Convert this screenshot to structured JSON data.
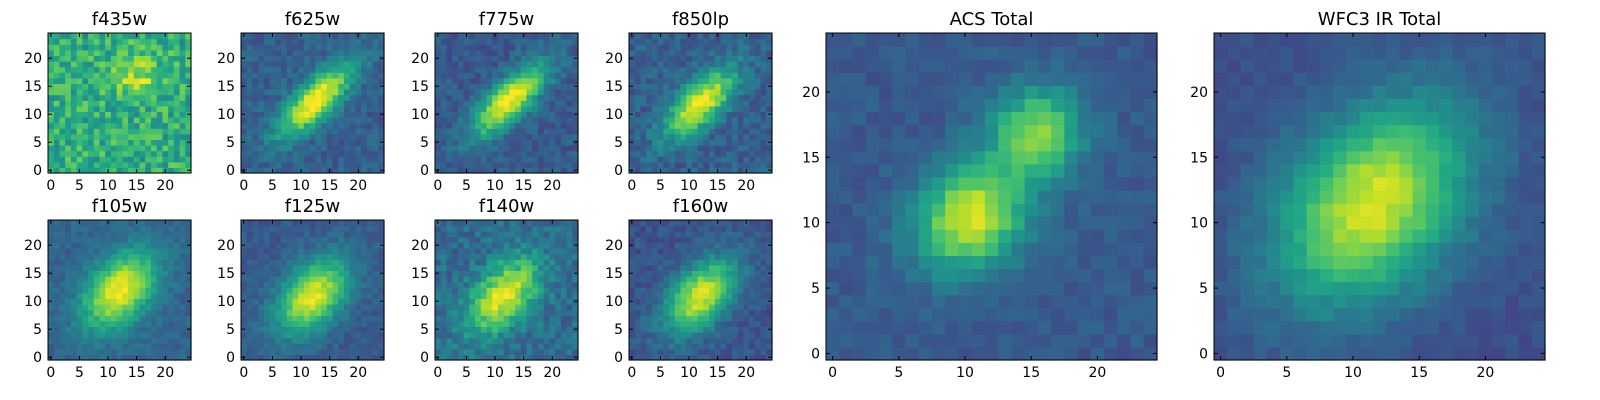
{
  "chart_data": [
    {
      "type": "heatmap",
      "title": "f435w",
      "grid": false,
      "colormap": "viridis",
      "xlim": [
        0,
        25
      ],
      "ylim": [
        0,
        25
      ],
      "xticks": [
        0,
        5,
        10,
        15,
        20
      ],
      "yticks": [
        0,
        5,
        10,
        15,
        20
      ],
      "z_description_note": null,
      "model": {
        "cx": 15,
        "cy": 17,
        "angle_deg": 0,
        "sigma_major": 3,
        "sigma_minor": 3,
        "peak": 0.25,
        "background": 0.62,
        "noise": 0.16,
        "second": null
      }
    },
    {
      "type": "heatmap",
      "title": "f625w",
      "grid": false,
      "colormap": "viridis",
      "xlim": [
        0,
        25
      ],
      "ylim": [
        0,
        25
      ],
      "xticks": [
        0,
        5,
        10,
        15,
        20
      ],
      "yticks": [
        0,
        5,
        10,
        15,
        20
      ],
      "model": {
        "cx": 12.5,
        "cy": 12.5,
        "angle_deg": 45,
        "sigma_major": 6,
        "sigma_minor": 2.2,
        "peak": 0.72,
        "background": 0.3,
        "noise": 0.08,
        "second": null
      }
    },
    {
      "type": "heatmap",
      "title": "f775w",
      "grid": false,
      "colormap": "viridis",
      "xlim": [
        0,
        25
      ],
      "ylim": [
        0,
        25
      ],
      "xticks": [
        0,
        5,
        10,
        15,
        20
      ],
      "yticks": [
        0,
        5,
        10,
        15,
        20
      ],
      "model": {
        "cx": 12.5,
        "cy": 12.5,
        "angle_deg": 45,
        "sigma_major": 6,
        "sigma_minor": 2.2,
        "peak": 0.72,
        "background": 0.28,
        "noise": 0.08,
        "second": null
      }
    },
    {
      "type": "heatmap",
      "title": "f850lp",
      "grid": false,
      "colormap": "viridis",
      "xlim": [
        0,
        25
      ],
      "ylim": [
        0,
        25
      ],
      "xticks": [
        0,
        5,
        10,
        15,
        20
      ],
      "yticks": [
        0,
        5,
        10,
        15,
        20
      ],
      "model": {
        "cx": 12,
        "cy": 12,
        "angle_deg": 45,
        "sigma_major": 5.5,
        "sigma_minor": 2.4,
        "peak": 0.7,
        "background": 0.3,
        "noise": 0.09,
        "second": null
      }
    },
    {
      "type": "heatmap",
      "title": "f105w",
      "grid": false,
      "colormap": "viridis",
      "xlim": [
        0,
        25
      ],
      "ylim": [
        0,
        25
      ],
      "xticks": [
        0,
        5,
        10,
        15,
        20
      ],
      "yticks": [
        0,
        5,
        10,
        15,
        20
      ],
      "model": {
        "cx": 12,
        "cy": 12,
        "angle_deg": 50,
        "sigma_major": 5.5,
        "sigma_minor": 3.5,
        "peak": 0.68,
        "background": 0.32,
        "noise": 0.06,
        "second": null
      }
    },
    {
      "type": "heatmap",
      "title": "f125w",
      "grid": false,
      "colormap": "viridis",
      "xlim": [
        0,
        25
      ],
      "ylim": [
        0,
        25
      ],
      "xticks": [
        0,
        5,
        10,
        15,
        20
      ],
      "yticks": [
        0,
        5,
        10,
        15,
        20
      ],
      "model": {
        "cx": 12,
        "cy": 11,
        "angle_deg": 50,
        "sigma_major": 5.5,
        "sigma_minor": 3.4,
        "peak": 0.68,
        "background": 0.28,
        "noise": 0.06,
        "second": null
      }
    },
    {
      "type": "heatmap",
      "title": "f140w",
      "grid": false,
      "colormap": "viridis",
      "xlim": [
        0,
        25
      ],
      "ylim": [
        0,
        25
      ],
      "xticks": [
        0,
        5,
        10,
        15,
        20
      ],
      "yticks": [
        0,
        5,
        10,
        15,
        20
      ],
      "model": {
        "cx": 11.5,
        "cy": 11,
        "angle_deg": 50,
        "sigma_major": 5.5,
        "sigma_minor": 3.2,
        "peak": 0.62,
        "background": 0.35,
        "noise": 0.1,
        "second": null
      }
    },
    {
      "type": "heatmap",
      "title": "f160w",
      "grid": false,
      "colormap": "viridis",
      "xlim": [
        0,
        25
      ],
      "ylim": [
        0,
        25
      ],
      "xticks": [
        0,
        5,
        10,
        15,
        20
      ],
      "yticks": [
        0,
        5,
        10,
        15,
        20
      ],
      "model": {
        "cx": 12,
        "cy": 11,
        "angle_deg": 48,
        "sigma_major": 5.5,
        "sigma_minor": 3.2,
        "peak": 0.68,
        "background": 0.26,
        "noise": 0.07,
        "second": null
      }
    },
    {
      "type": "heatmap",
      "title": "ACS Total",
      "grid": false,
      "colormap": "viridis",
      "xlim": [
        0,
        25
      ],
      "ylim": [
        0,
        25
      ],
      "xticks": [
        0,
        5,
        10,
        15,
        20
      ],
      "yticks": [
        0,
        5,
        10,
        15,
        20
      ],
      "model": {
        "cx": 10.5,
        "cy": 10.5,
        "angle_deg": 45,
        "sigma_major": 3.2,
        "sigma_minor": 2.6,
        "peak": 0.66,
        "background": 0.28,
        "noise": 0.05,
        "second": {
          "cx": 15.5,
          "cy": 17,
          "sigma": 2.4,
          "peak": 0.52
        }
      }
    },
    {
      "type": "heatmap",
      "title": "WFC3 IR Total",
      "grid": false,
      "colormap": "viridis",
      "xlim": [
        0,
        25
      ],
      "ylim": [
        0,
        25
      ],
      "xticks": [
        0,
        5,
        10,
        15,
        20
      ],
      "yticks": [
        0,
        5,
        10,
        15,
        20
      ],
      "model": {
        "cx": 11.5,
        "cy": 11.5,
        "angle_deg": 50,
        "sigma_major": 6,
        "sigma_minor": 4.2,
        "peak": 0.7,
        "background": 0.24,
        "noise": 0.04,
        "second": null
      }
    }
  ]
}
